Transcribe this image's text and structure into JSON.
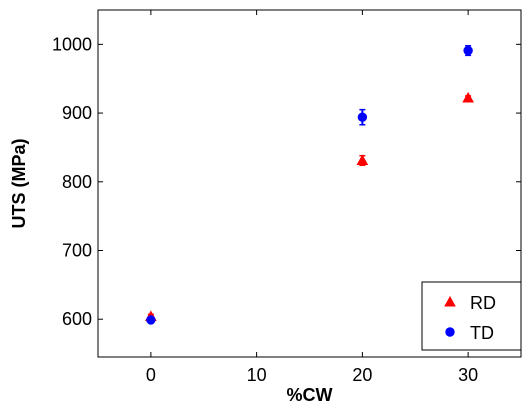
{
  "chart_data": {
    "type": "scatter",
    "title": "",
    "xlabel": "%CW",
    "ylabel": "UTS (MPa)",
    "xlim": [
      -5,
      35
    ],
    "ylim": [
      545,
      1050
    ],
    "xticks": [
      0,
      10,
      20,
      30
    ],
    "yticks": [
      600,
      700,
      800,
      900,
      1000
    ],
    "grid": false,
    "legend_position": "bottom-right",
    "series": [
      {
        "name": "RD",
        "marker": "triangle",
        "color": "#ff0000",
        "points": [
          {
            "x": 0,
            "y": 604,
            "err": 3
          },
          {
            "x": 20,
            "y": 831,
            "err": 7
          },
          {
            "x": 30,
            "y": 922,
            "err": 3
          }
        ]
      },
      {
        "name": "TD",
        "marker": "circle",
        "color": "#0000ff",
        "points": [
          {
            "x": 0,
            "y": 599,
            "err": 3
          },
          {
            "x": 20,
            "y": 894,
            "err": 11
          },
          {
            "x": 30,
            "y": 991,
            "err": 7
          }
        ]
      }
    ]
  }
}
